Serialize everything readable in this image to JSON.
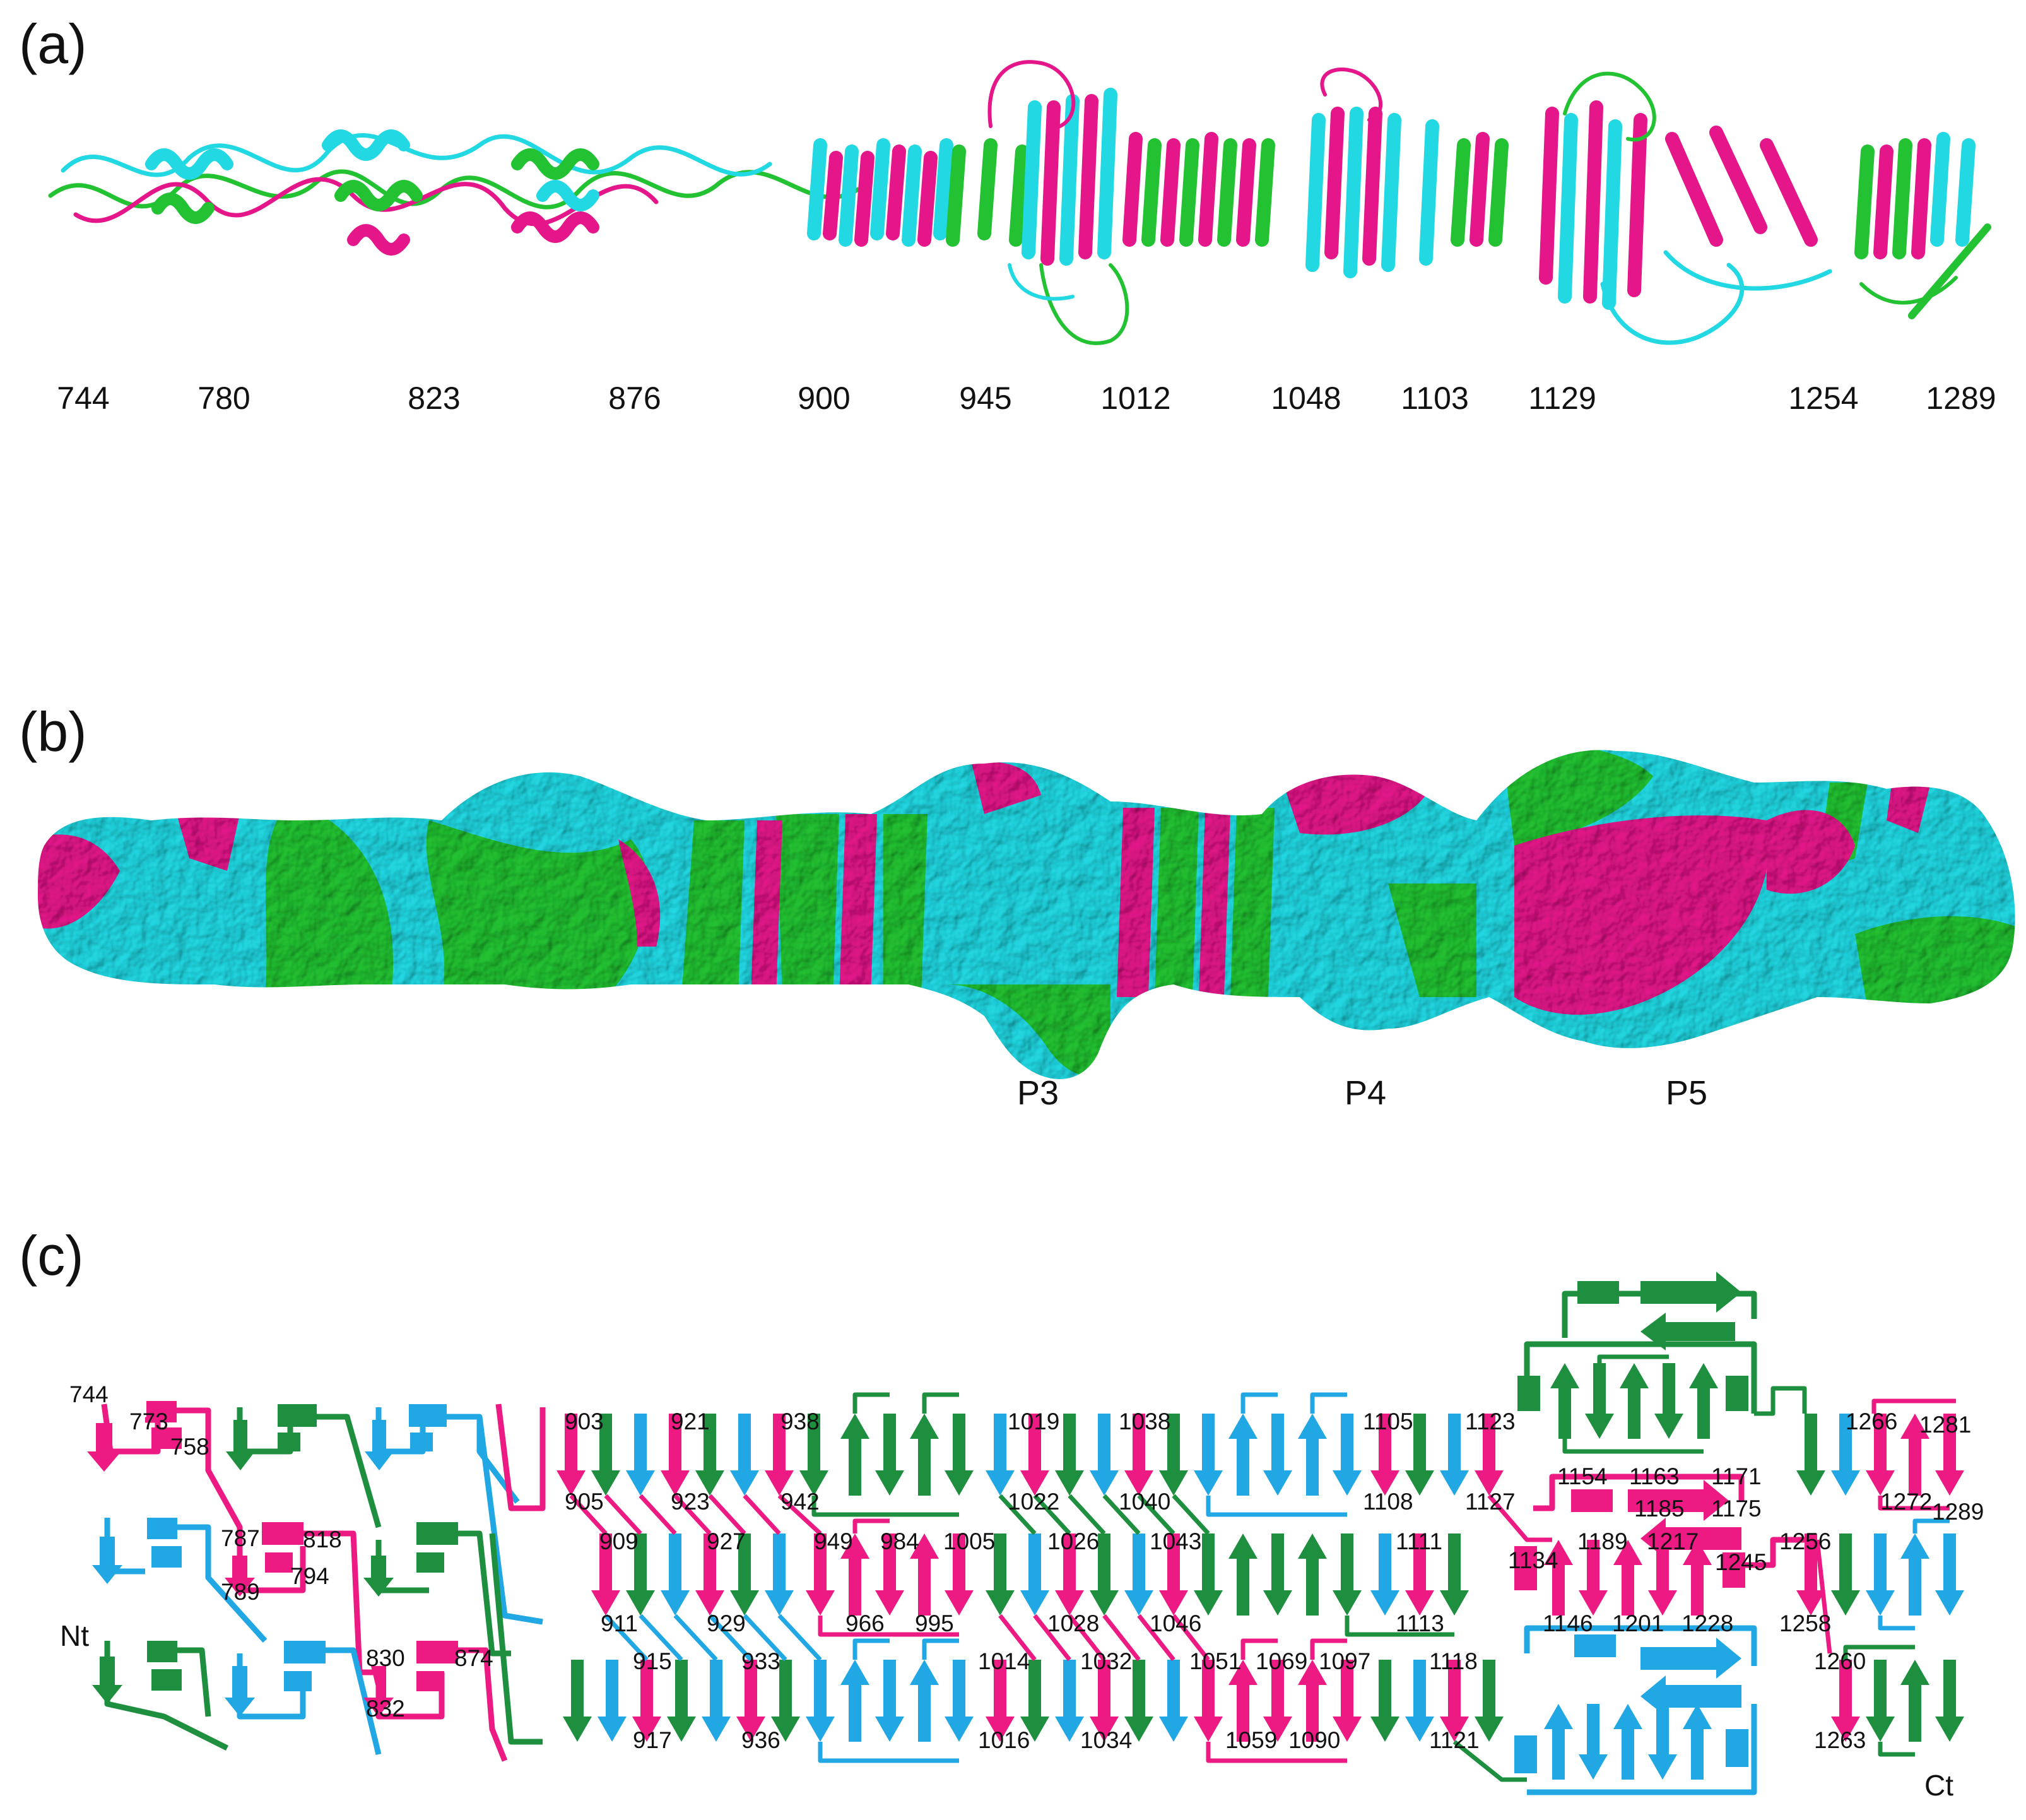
{
  "colors": {
    "magenta": "#e4168a",
    "cyan": "#21d8e3",
    "green": "#22c232",
    "topo_magenta": "#ec1a82",
    "topo_blue": "#21a7e3",
    "topo_green": "#1d8f3e"
  },
  "panels": {
    "a": {
      "label": "(a)",
      "residues": [
        "744",
        "780",
        "823",
        "876",
        "900",
        "945",
        "1012",
        "1048",
        "1103",
        "1129",
        "1254",
        "1289"
      ]
    },
    "b": {
      "label": "(b)",
      "peaks": [
        "P3",
        "P4",
        "P5"
      ]
    },
    "c": {
      "label": "(c)",
      "n_terminus": "Nt",
      "c_terminus": "Ct",
      "residues": [
        "744",
        "773",
        "758",
        "787",
        "818",
        "789",
        "794",
        "830",
        "874",
        "832",
        "903",
        "905",
        "921",
        "923",
        "938",
        "942",
        "909",
        "911",
        "927",
        "929",
        "949",
        "984",
        "1005",
        "966",
        "995",
        "915",
        "917",
        "933",
        "936",
        "1019",
        "1022",
        "1038",
        "1040",
        "1026",
        "1028",
        "1043",
        "1046",
        "1014",
        "1016",
        "1032",
        "1034",
        "1051",
        "1069",
        "1097",
        "1059",
        "1090",
        "1105",
        "1108",
        "1123",
        "1127",
        "1111",
        "1113",
        "1118",
        "1121",
        "1134",
        "1146",
        "1154",
        "1163",
        "1171",
        "1185",
        "1175",
        "1189",
        "1217",
        "1201",
        "1228",
        "1245",
        "1256",
        "1258",
        "1260",
        "1263",
        "1266",
        "1281",
        "1272",
        "1289"
      ]
    }
  }
}
